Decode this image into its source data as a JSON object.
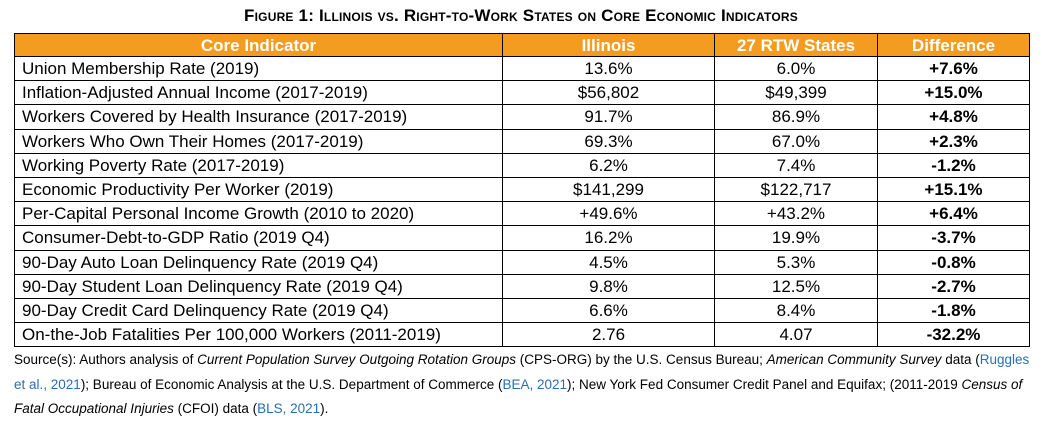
{
  "title": "Figure 1: Illinois vs. Right-to-Work States on Core Economic Indicators",
  "colors": {
    "header_bg": "#f39c1f",
    "header_text": "#ffffff",
    "link": "#2b6db3"
  },
  "table": {
    "headers": [
      "Core Indicator",
      "Illinois",
      "27 RTW States",
      "Difference"
    ],
    "rows": [
      [
        "Union Membership Rate (2019)",
        "13.6%",
        "6.0%",
        "+7.6%"
      ],
      [
        "Inflation-Adjusted Annual Income (2017-2019)",
        "$56,802",
        "$49,399",
        "+15.0%"
      ],
      [
        "Workers Covered by Health Insurance (2017-2019)",
        "91.7%",
        "86.9%",
        "+4.8%"
      ],
      [
        "Workers Who Own Their Homes (2017-2019)",
        "69.3%",
        "67.0%",
        "+2.3%"
      ],
      [
        "Working Poverty Rate (2017-2019)",
        "6.2%",
        "7.4%",
        "-1.2%"
      ],
      [
        "Economic Productivity Per Worker (2019)",
        "$141,299",
        "$122,717",
        "+15.1%"
      ],
      [
        "Per-Capital Personal Income Growth (2010 to 2020)",
        "+49.6%",
        "+43.2%",
        "+6.4%"
      ],
      [
        "Consumer-Debt-to-GDP Ratio (2019 Q4)",
        "16.2%",
        "19.9%",
        "-3.7%"
      ],
      [
        "90-Day Auto Loan Delinquency Rate (2019 Q4)",
        "4.5%",
        "5.3%",
        "-0.8%"
      ],
      [
        "90-Day Student Loan Delinquency Rate (2019 Q4)",
        "9.8%",
        "12.5%",
        "-2.7%"
      ],
      [
        "90-Day Credit Card Delinquency Rate (2019 Q4)",
        "6.6%",
        "8.4%",
        "-1.8%"
      ],
      [
        "On-the-Job Fatalities Per 100,000 Workers (2011-2019)",
        "2.76",
        "4.07",
        "-32.2%"
      ]
    ]
  },
  "source": {
    "s1": "Source(s): Authors analysis of ",
    "s2": "Current Population Survey Outgoing Rotation Groups",
    "s3": " (CPS-ORG) by the U.S. Census Bureau; ",
    "s4": "American Community Survey",
    "s5": " data (",
    "link1": "Ruggles et al., 2021",
    "s6": ");  Bureau of Economic Analysis at the U.S. Department of Commerce (",
    "link2": "BEA, 2021",
    "s7": "); New York Fed Consumer Credit Panel and Equifax; (2011-2019 ",
    "s8": "Census of Fatal Occupational Injuries",
    "s9": " (CFOI) data (",
    "link3": "BLS, 2021",
    "s10": ")."
  }
}
